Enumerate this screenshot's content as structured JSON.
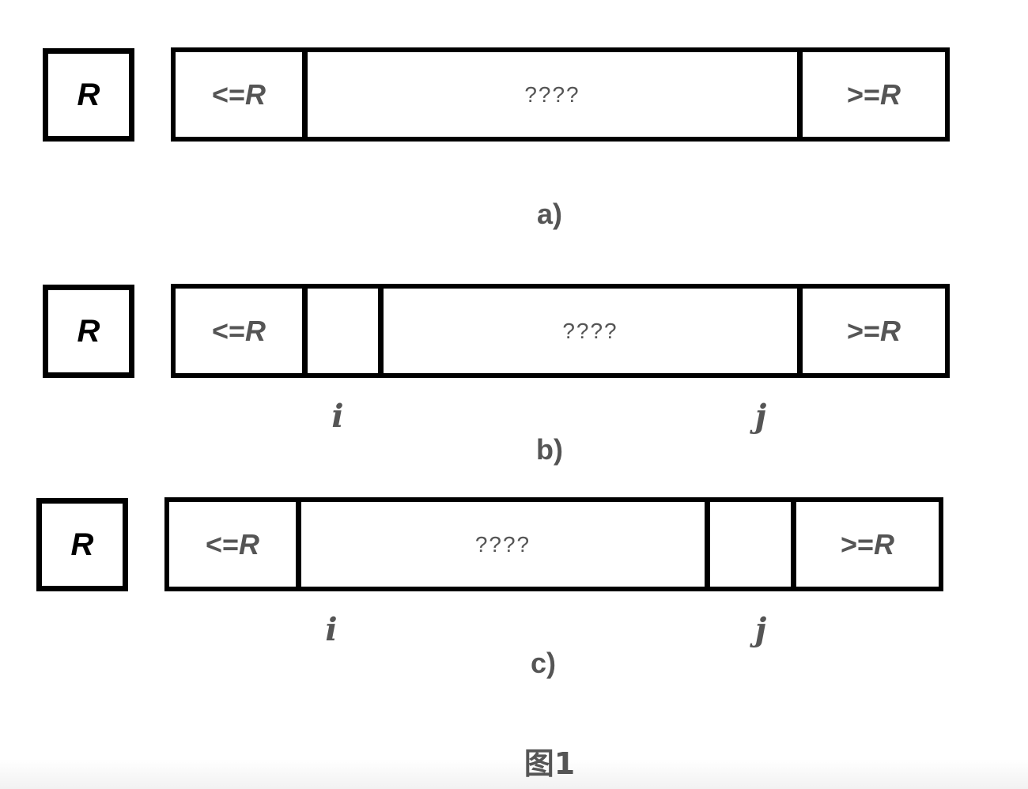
{
  "pivot_symbol": "R",
  "segment_labels": {
    "less_equal_prefix": "<=",
    "greater_equal_prefix": ">=",
    "pivot": "R",
    "unknown": "????"
  },
  "pointers": {
    "i": "i",
    "j": "j"
  },
  "panels": [
    {
      "caption": "a)"
    },
    {
      "caption": "b)"
    },
    {
      "caption": "c)"
    }
  ],
  "figure_title": "图1"
}
